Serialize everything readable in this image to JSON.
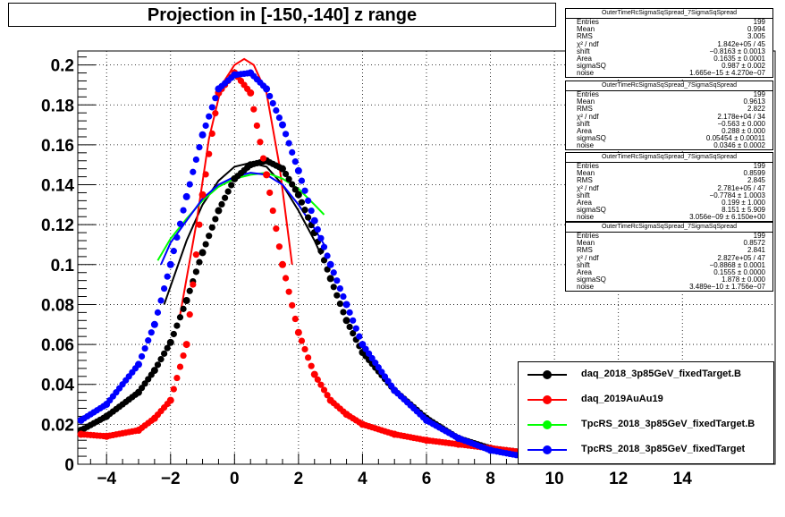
{
  "chart_data": {
    "type": "scatter",
    "title": "Projection in [-150,-140] z range",
    "xlim": [
      -4.9,
      16.9
    ],
    "ylim": [
      0,
      0.207
    ],
    "x_ticks": [
      "−4",
      "−2",
      "0",
      "2",
      "4",
      "6",
      "8",
      "10",
      "12",
      "14"
    ],
    "x_tick_values": [
      -4,
      -2,
      0,
      2,
      4,
      6,
      8,
      10,
      12,
      14
    ],
    "y_ticks": [
      "0",
      "0.02",
      "0.04",
      "0.06",
      "0.08",
      "0.1",
      "0.12",
      "0.14",
      "0.16",
      "0.18",
      "0.2"
    ],
    "y_tick_values": [
      0,
      0.02,
      0.04,
      0.06,
      0.08,
      0.1,
      0.12,
      0.14,
      0.16,
      0.18,
      0.2
    ],
    "grid": true,
    "legend_position": "bottom-right",
    "series": [
      {
        "name": "daq_2018_3p85GeV_fixedTarget.B",
        "color": "#000000",
        "x": [
          -4.8,
          -4,
          -3,
          -2.5,
          -2,
          -1.5,
          -1,
          -0.5,
          0,
          0.5,
          1,
          1.5,
          2,
          2.5,
          3,
          3.5,
          4,
          5,
          6,
          7,
          8,
          9,
          10
        ],
        "y": [
          0.017,
          0.024,
          0.036,
          0.047,
          0.061,
          0.082,
          0.106,
          0.127,
          0.143,
          0.15,
          0.152,
          0.148,
          0.135,
          0.116,
          0.093,
          0.072,
          0.056,
          0.037,
          0.023,
          0.013,
          0.008,
          0.006,
          0.004
        ],
        "fit": {
          "x": [
            -2.2,
            -1.5,
            -1,
            -0.5,
            0,
            0.5,
            1,
            1.5,
            2,
            2.5,
            2.7
          ],
          "y": [
            0.08,
            0.112,
            0.13,
            0.142,
            0.149,
            0.151,
            0.149,
            0.14,
            0.127,
            0.112,
            0.105
          ]
        }
      },
      {
        "name": "daq_2019AuAu19",
        "color": "#ff0000",
        "x": [
          -4.8,
          -4,
          -3,
          -2.5,
          -2,
          -1.5,
          -1,
          -0.5,
          0,
          0.5,
          1,
          1.5,
          2,
          2.5,
          3,
          3.5,
          4,
          5,
          6,
          7,
          8,
          9,
          10
        ],
        "y": [
          0.015,
          0.014,
          0.017,
          0.023,
          0.032,
          0.06,
          0.135,
          0.186,
          0.196,
          0.186,
          0.145,
          0.1,
          0.066,
          0.045,
          0.032,
          0.025,
          0.02,
          0.015,
          0.012,
          0.01,
          0.008,
          0.006,
          0.005
        ],
        "fit": {
          "x": [
            -1.7,
            -1.2,
            -0.8,
            -0.4,
            0,
            0.3,
            0.6,
            1,
            1.4,
            1.8
          ],
          "y": [
            0.075,
            0.12,
            0.163,
            0.19,
            0.2,
            0.203,
            0.2,
            0.186,
            0.15,
            0.1
          ]
        }
      },
      {
        "name": "TpcRS_2018_3p85GeV_fixedTarget.B",
        "color": "#00ff00",
        "fit": {
          "x": [
            -2.4,
            -2,
            -1.5,
            -1,
            -0.5,
            0,
            0.5,
            1,
            1.5,
            2,
            2.5,
            2.8
          ],
          "y": [
            0.102,
            0.113,
            0.123,
            0.132,
            0.139,
            0.143,
            0.145,
            0.146,
            0.143,
            0.138,
            0.13,
            0.125
          ]
        }
      },
      {
        "name": "TpcRS_2018_3p85GeV_fixedTarget",
        "color": "#0000ff",
        "x": [
          -4.8,
          -4,
          -3,
          -2.5,
          -2,
          -1.5,
          -1,
          -0.5,
          0,
          0.5,
          1,
          1.5,
          2,
          2.5,
          3,
          3.5,
          4,
          5,
          6,
          7,
          8,
          9,
          10
        ],
        "y": [
          0.022,
          0.03,
          0.05,
          0.07,
          0.1,
          0.134,
          0.165,
          0.188,
          0.195,
          0.196,
          0.188,
          0.17,
          0.147,
          0.122,
          0.1,
          0.08,
          0.06,
          0.037,
          0.022,
          0.013,
          0.007,
          0.004,
          0.002
        ],
        "fit": {
          "x": [
            -2.3,
            -2,
            -1.5,
            -1,
            -0.5,
            0,
            0.5,
            1,
            1.5,
            2,
            2.5,
            2.8
          ],
          "y": [
            0.1,
            0.111,
            0.122,
            0.133,
            0.14,
            0.144,
            0.146,
            0.145,
            0.14,
            0.13,
            0.118,
            0.11
          ]
        }
      }
    ]
  },
  "stat_boxes": [
    {
      "title": "OuterTimeRcSigmaSqSpread_7SigmaSqSpread",
      "rows": [
        {
          "label": "Entries",
          "value": "199"
        },
        {
          "label": "Mean",
          "value": "0.994"
        },
        {
          "label": "RMS",
          "value": "3.005"
        },
        {
          "label": "χ² / ndf",
          "value": "1.842e+05 / 45"
        },
        {
          "label": "shift",
          "value": "−0.8163 ± 0.0013"
        },
        {
          "label": "Area",
          "value": "0.1635 ± 0.0001"
        },
        {
          "label": "sigmaSQ",
          "value": "0.987 ± 0.002"
        },
        {
          "label": "noise",
          "value": "1.665e−15 ± 4.270e−07"
        }
      ]
    },
    {
      "title": "OuterTimeRcSigmaSqSpread_7SigmaSqSpread",
      "rows": [
        {
          "label": "Entries",
          "value": "199"
        },
        {
          "label": "Mean",
          "value": "0.9613"
        },
        {
          "label": "RMS",
          "value": "2.822"
        },
        {
          "label": "χ² / ndf",
          "value": "2.178e+04 / 34"
        },
        {
          "label": "shift",
          "value": "−0.563 ± 0.000"
        },
        {
          "label": "Area",
          "value": "0.288 ± 0.000"
        },
        {
          "label": "sigmaSQ",
          "value": "0.05454 ± 0.00011"
        },
        {
          "label": "noise",
          "value": "0.0346 ± 0.0002"
        }
      ]
    },
    {
      "title": "OuterTimeRcSigmaSqSpread_7SigmaSqSpread",
      "rows": [
        {
          "label": "Entries",
          "value": "199"
        },
        {
          "label": "Mean",
          "value": "0.8599"
        },
        {
          "label": "RMS",
          "value": "2.845"
        },
        {
          "label": "χ² / ndf",
          "value": "2.781e+05 / 47"
        },
        {
          "label": "shift",
          "value": "−0.7784 ± 1.0003"
        },
        {
          "label": "Area",
          "value": "0.199 ± 1.000"
        },
        {
          "label": "sigmaSQ",
          "value": "8.151 ± 5.909"
        },
        {
          "label": "noise",
          "value": "3.056e−09 ± 6.150e+00"
        }
      ]
    },
    {
      "title": "OuterTimeRcSigmaSqSpread_7SigmaSqSpread",
      "rows": [
        {
          "label": "Entries",
          "value": "199"
        },
        {
          "label": "Mean",
          "value": "0.8572"
        },
        {
          "label": "RMS",
          "value": "2.841"
        },
        {
          "label": "χ² / ndf",
          "value": "2.827e+05 / 47"
        },
        {
          "label": "shift",
          "value": "−0.8868 ± 0.0001"
        },
        {
          "label": "Area",
          "value": "0.1555 ± 0.0000"
        },
        {
          "label": "sigmaSQ",
          "value": "1.878 ± 0.000"
        },
        {
          "label": "noise",
          "value": "3.489e−10 ± 1.756e−07"
        }
      ]
    }
  ]
}
